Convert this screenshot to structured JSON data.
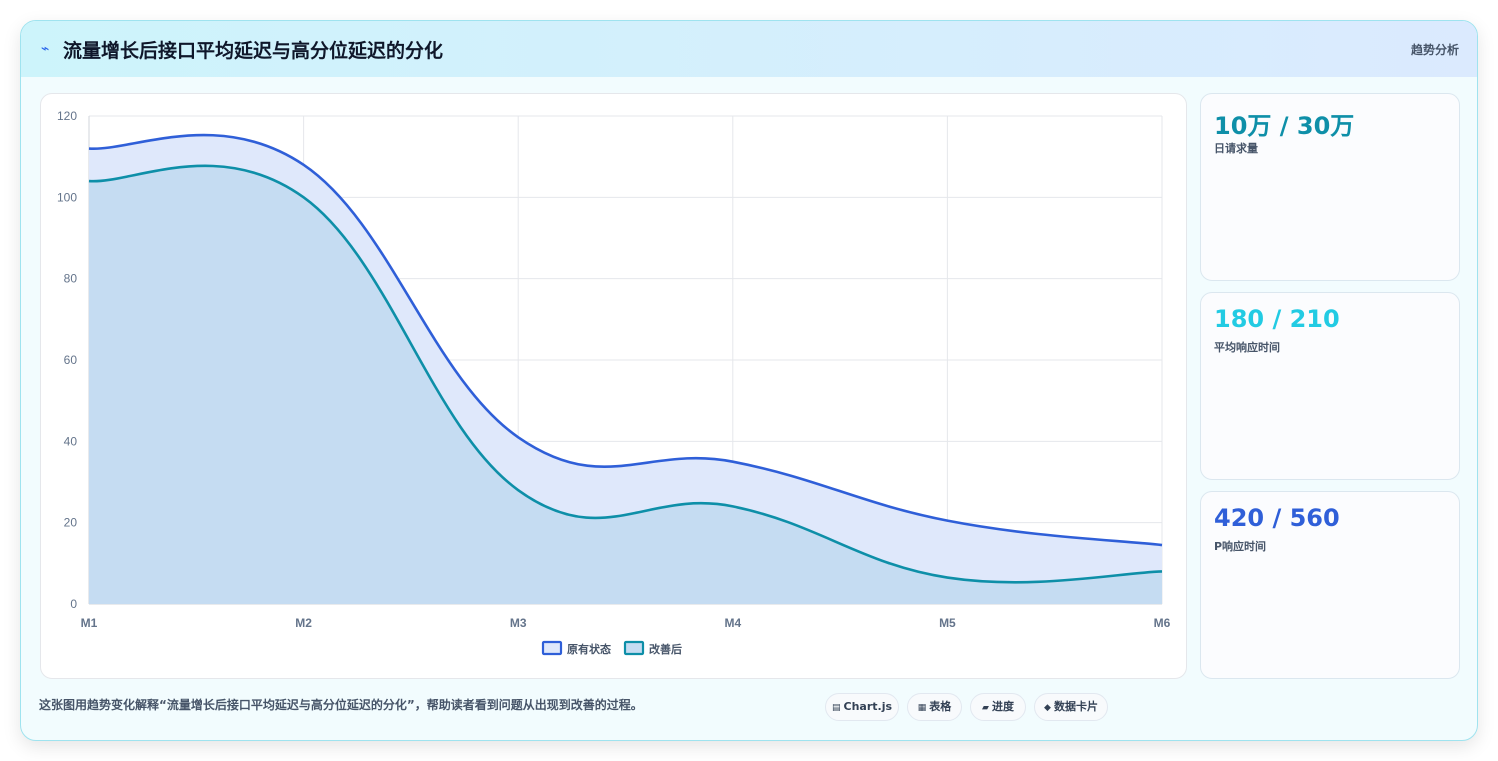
{
  "header": {
    "title": "流量增长后接口平均延迟与高分位延迟的分化",
    "tag": "趋势分析",
    "icon": "lightning-icon"
  },
  "stats": [
    {
      "value": "10万 / 30万",
      "label": "日请求量",
      "color": "#0e8fa8"
    },
    {
      "value": "180 / 210",
      "label": "平均响应时间",
      "color": "#22cbe3"
    },
    {
      "value": "420 / 560",
      "label": "P响应时间",
      "color": "#2f5fd8"
    }
  ],
  "caption": "这张图用趋势变化解释“流量增长后接口平均延迟与高分位延迟的分化”，帮助读者看到问题从出现到改善的过程。",
  "chips": [
    {
      "icon": "chart-icon",
      "glyph": "▤",
      "label": "Chart.js"
    },
    {
      "icon": "table-icon",
      "glyph": "▦",
      "label": "表格"
    },
    {
      "icon": "progress-icon",
      "glyph": "▰",
      "label": "进度"
    },
    {
      "icon": "card-icon",
      "glyph": "◆",
      "label": "数据卡片"
    }
  ],
  "chart_data": {
    "type": "area",
    "categories": [
      "M1",
      "M2",
      "M3",
      "M4",
      "M5",
      "M6"
    ],
    "ylim": [
      0,
      120
    ],
    "yticks": [
      0,
      20,
      40,
      60,
      80,
      100,
      120
    ],
    "grid": true,
    "legend_position": "bottom",
    "series": [
      {
        "name": "原有状态",
        "values": [
          112,
          108,
          41,
          35,
          20.5,
          14.5
        ],
        "color": "#2f5fd8",
        "fill": "#dfe8fb"
      },
      {
        "name": "改善后",
        "values": [
          104,
          100,
          28,
          24,
          6.5,
          8
        ],
        "color": "#0e8fa8",
        "fill": "#c5dcf2"
      }
    ]
  }
}
